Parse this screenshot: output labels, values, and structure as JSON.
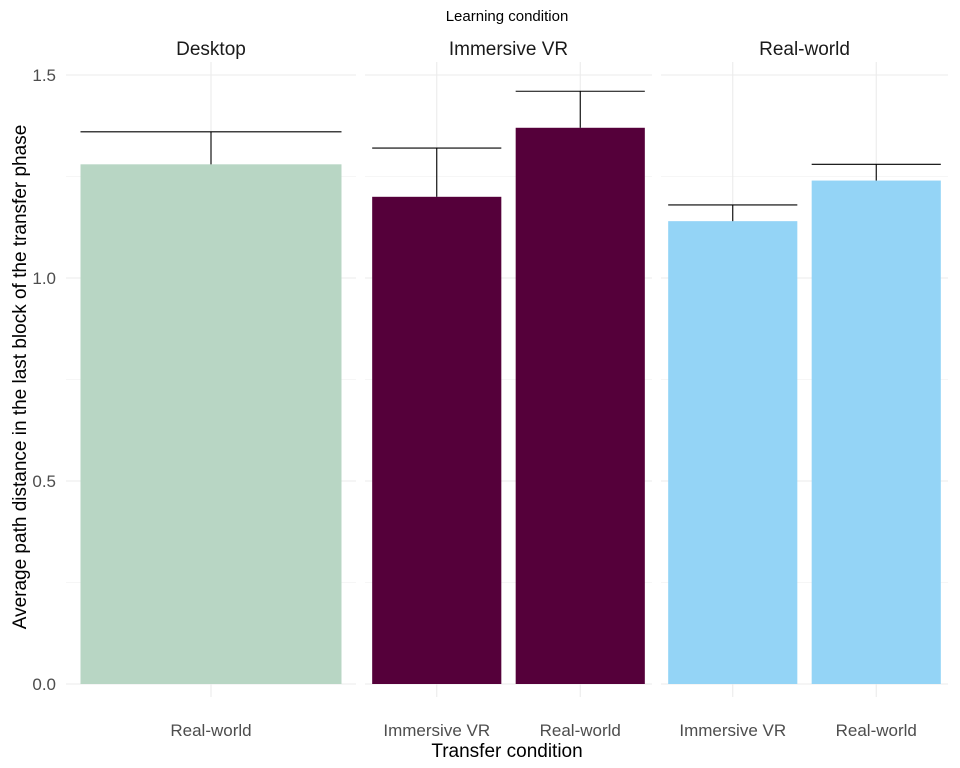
{
  "chart_data": {
    "type": "bar",
    "title": "Learning condition",
    "xlabel": "Transfer condition",
    "ylabel": "Average path distance in the last block of the transfer phase",
    "ylim": [
      0,
      1.5
    ],
    "yticks": [
      "0.0",
      "0.5",
      "1.0",
      "1.5"
    ],
    "grid": true,
    "legend": "none",
    "facets": [
      {
        "name": "Desktop",
        "color": "#b8d6c4",
        "categories": [
          "Real-world"
        ],
        "values": [
          1.28
        ],
        "error_upper": [
          1.36
        ]
      },
      {
        "name": "Immersive VR",
        "color": "#55003a",
        "categories": [
          "Immersive VR",
          "Real-world"
        ],
        "values": [
          1.2,
          1.37
        ],
        "error_upper": [
          1.32,
          1.46
        ]
      },
      {
        "name": "Real-world",
        "color": "#94d4f6",
        "categories": [
          "Immersive VR",
          "Real-world"
        ],
        "values": [
          1.14,
          1.24
        ],
        "error_upper": [
          1.18,
          1.28
        ]
      }
    ]
  }
}
